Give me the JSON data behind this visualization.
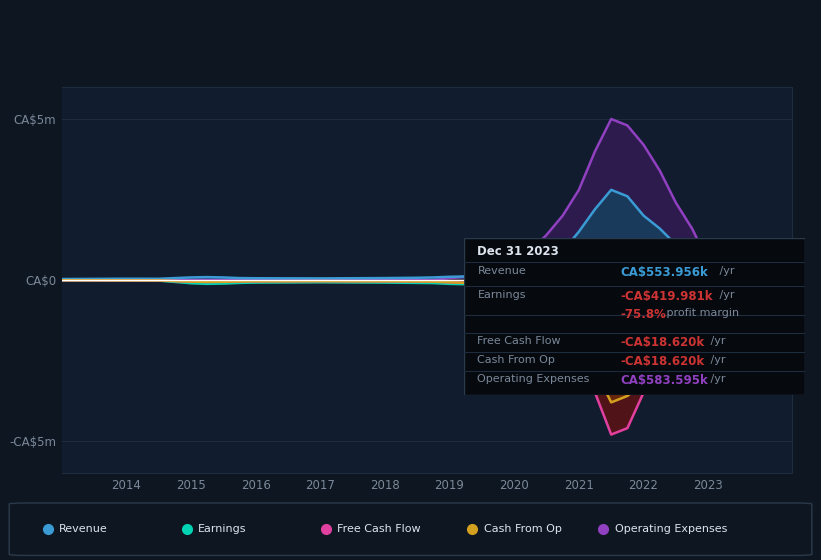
{
  "bg_color": "#0e1621",
  "chart_bg": "#111d2e",
  "text_color": "#7a8899",
  "zero_line_color": "#ffffff",
  "grid_color": "#1e2d3d",
  "ylim": [
    -6000000,
    6000000
  ],
  "yticks": [
    -5000000,
    0,
    5000000
  ],
  "ytick_labels": [
    "-CA$5m",
    "CA$0",
    "CA$5m"
  ],
  "years": [
    2013.0,
    2013.5,
    2014.0,
    2014.5,
    2015.0,
    2015.25,
    2015.5,
    2015.75,
    2016.0,
    2016.5,
    2017.0,
    2017.5,
    2018.0,
    2018.25,
    2018.5,
    2018.75,
    2019.0,
    2019.25,
    2019.5,
    2019.75,
    2020.0,
    2020.25,
    2020.5,
    2020.75,
    2021.0,
    2021.25,
    2021.5,
    2021.75,
    2022.0,
    2022.25,
    2022.5,
    2022.75,
    2023.0,
    2023.5,
    2024.0
  ],
  "revenue": [
    30000,
    35000,
    40000,
    38000,
    80000,
    90000,
    80000,
    60000,
    55000,
    52000,
    50000,
    55000,
    60000,
    65000,
    70000,
    80000,
    100000,
    110000,
    105000,
    120000,
    180000,
    350000,
    600000,
    900000,
    1500000,
    2200000,
    2800000,
    2600000,
    2000000,
    1600000,
    1100000,
    800000,
    554000,
    552000,
    550000
  ],
  "earnings": [
    -10000,
    -12000,
    -15000,
    -18000,
    -100000,
    -120000,
    -110000,
    -90000,
    -80000,
    -75000,
    -70000,
    -75000,
    -80000,
    -85000,
    -90000,
    -95000,
    -120000,
    -130000,
    -140000,
    -160000,
    -300000,
    -700000,
    -1100000,
    -1500000,
    -1800000,
    -2200000,
    -2600000,
    -2500000,
    -2200000,
    -1800000,
    -1400000,
    -900000,
    -420000,
    -415000,
    -410000
  ],
  "free_cash_flow": [
    -8000,
    -10000,
    -12000,
    -14000,
    -50000,
    -60000,
    -55000,
    -45000,
    -40000,
    -38000,
    -35000,
    -38000,
    -40000,
    -42000,
    -45000,
    -50000,
    -70000,
    -90000,
    -100000,
    -120000,
    -300000,
    -700000,
    -1200000,
    -1800000,
    -2500000,
    -3500000,
    -4800000,
    -4600000,
    -3500000,
    -2500000,
    -1500000,
    -800000,
    -19000,
    -18800,
    -18600
  ],
  "cash_from_op": [
    -8000,
    -10000,
    -12000,
    -14000,
    -50000,
    -60000,
    -55000,
    -45000,
    -40000,
    -38000,
    -35000,
    -38000,
    -40000,
    -42000,
    -45000,
    -50000,
    -70000,
    -90000,
    -100000,
    -120000,
    -280000,
    -600000,
    -1000000,
    -1500000,
    -1800000,
    -2800000,
    -3800000,
    -3600000,
    -3200000,
    -2600000,
    -1600000,
    -900000,
    -19000,
    -18800,
    -18600
  ],
  "operating_expenses": [
    0,
    0,
    0,
    0,
    0,
    0,
    0,
    0,
    0,
    0,
    0,
    0,
    0,
    0,
    0,
    0,
    60000,
    100000,
    120000,
    200000,
    500000,
    900000,
    1400000,
    2000000,
    2800000,
    4000000,
    5000000,
    4800000,
    4200000,
    3400000,
    2400000,
    1600000,
    584000,
    582000,
    580000
  ],
  "revenue_color": "#3a9bd5",
  "earnings_color": "#00d4b4",
  "free_cash_flow_color": "#e040a0",
  "cash_from_op_color": "#d4a020",
  "operating_expenses_color": "#9040c0",
  "revenue_fill_color": "#1a3a5c",
  "earnings_fill_color": "#8b1a1a",
  "op_exp_fill_color": "#2d1b4e",
  "info_box": {
    "date": "Dec 31 2023",
    "revenue_label": "Revenue",
    "revenue_value": "CA$553.956k",
    "revenue_value2": " /yr",
    "revenue_color": "#3a9bd5",
    "earnings_label": "Earnings",
    "earnings_value": "-CA$419.981k",
    "earnings_value2": " /yr",
    "earnings_color": "#cc3333",
    "margin_value": "-75.8%",
    "margin_text": " profit margin",
    "margin_color": "#cc3333",
    "fcf_label": "Free Cash Flow",
    "fcf_value": "-CA$18.620k",
    "fcf_value2": " /yr",
    "fcf_color": "#cc3333",
    "cfop_label": "Cash From Op",
    "cfop_value": "-CA$18.620k",
    "cfop_value2": " /yr",
    "cfop_color": "#cc3333",
    "opex_label": "Operating Expenses",
    "opex_value": "CA$583.595k",
    "opex_value2": " /yr",
    "opex_color": "#9040c0"
  },
  "legend": [
    {
      "label": "Revenue",
      "color": "#3a9bd5"
    },
    {
      "label": "Earnings",
      "color": "#00d4b4"
    },
    {
      "label": "Free Cash Flow",
      "color": "#e040a0"
    },
    {
      "label": "Cash From Op",
      "color": "#d4a020"
    },
    {
      "label": "Operating Expenses",
      "color": "#9040c0"
    }
  ],
  "xlim": [
    2013.0,
    2024.3
  ],
  "xtick_years": [
    2014,
    2015,
    2016,
    2017,
    2018,
    2019,
    2020,
    2021,
    2022,
    2023
  ]
}
